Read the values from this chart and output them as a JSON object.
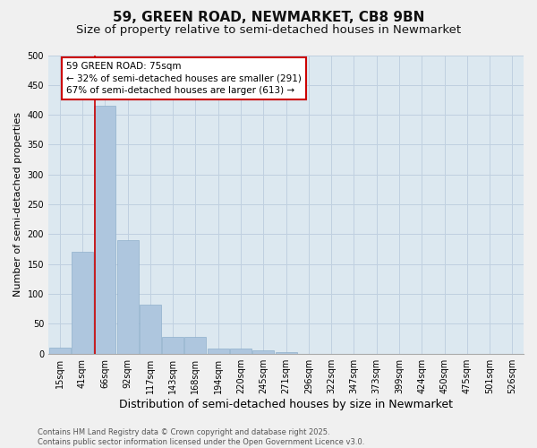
{
  "title": "59, GREEN ROAD, NEWMARKET, CB8 9BN",
  "subtitle": "Size of property relative to semi-detached houses in Newmarket",
  "xlabel": "Distribution of semi-detached houses by size in Newmarket",
  "ylabel": "Number of semi-detached properties",
  "categories": [
    "15sqm",
    "41sqm",
    "66sqm",
    "92sqm",
    "117sqm",
    "143sqm",
    "168sqm",
    "194sqm",
    "220sqm",
    "245sqm",
    "271sqm",
    "296sqm",
    "322sqm",
    "347sqm",
    "373sqm",
    "399sqm",
    "424sqm",
    "450sqm",
    "475sqm",
    "501sqm",
    "526sqm"
  ],
  "values": [
    10,
    170,
    415,
    190,
    82,
    28,
    28,
    9,
    9,
    5,
    2,
    0,
    0,
    0,
    0,
    0,
    0,
    0,
    0,
    0,
    0
  ],
  "bar_color": "#aec6de",
  "bar_edge_color": "#8fb0cc",
  "grid_color": "#c0d0e0",
  "background_color": "#dce8f0",
  "figure_color": "#f0f0f0",
  "annotation_title": "59 GREEN ROAD: 75sqm",
  "annotation_line1": "← 32% of semi-detached houses are smaller (291)",
  "annotation_line2": "67% of semi-detached houses are larger (613) →",
  "annotation_box_facecolor": "#ffffff",
  "annotation_box_edgecolor": "#cc0000",
  "red_line_color": "#cc0000",
  "red_line_x": 1.55,
  "ylim": [
    0,
    500
  ],
  "yticks": [
    0,
    50,
    100,
    150,
    200,
    250,
    300,
    350,
    400,
    450,
    500
  ],
  "title_fontsize": 11,
  "subtitle_fontsize": 9.5,
  "xlabel_fontsize": 9,
  "ylabel_fontsize": 8,
  "tick_fontsize": 7,
  "annotation_fontsize": 7.5,
  "footnote_fontsize": 6,
  "footnote": "Contains HM Land Registry data © Crown copyright and database right 2025.\nContains public sector information licensed under the Open Government Licence v3.0."
}
